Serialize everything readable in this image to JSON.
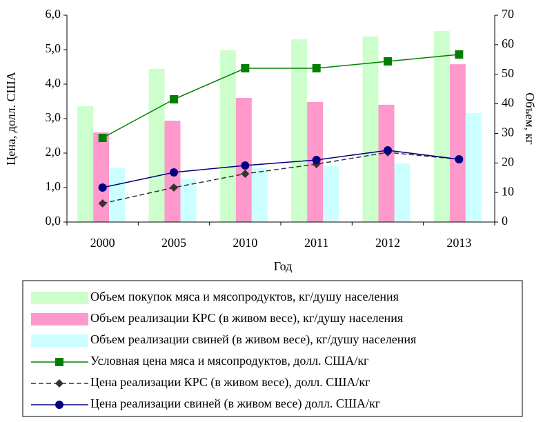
{
  "chart_data": {
    "type": "bar",
    "categories": [
      "2000",
      "2005",
      "2010",
      "2011",
      "2012",
      "2013"
    ],
    "xlabel": "Год",
    "ylabel": "Цена, долл. США",
    "y2label": "Объем, кг",
    "ylim": [
      0,
      6
    ],
    "yticks": [
      {
        "value": 0,
        "label": "0,0"
      },
      {
        "value": 1,
        "label": "1,0"
      },
      {
        "value": 2,
        "label": "2,0"
      },
      {
        "value": 3,
        "label": "3,0"
      },
      {
        "value": 4,
        "label": "4,0"
      },
      {
        "value": 5,
        "label": "5,0"
      },
      {
        "value": 6,
        "label": "6,0"
      }
    ],
    "y2lim": [
      0,
      70
    ],
    "y2ticks": [
      0,
      10,
      20,
      30,
      40,
      50,
      60,
      70
    ],
    "legend": "bottom",
    "series": [
      {
        "name": "Объем покупок мяса и мясопродуктов, кг/душу населения",
        "type": "bar",
        "axis": "y2",
        "color": "#ccffcc",
        "values": [
          39.2,
          51.8,
          58.1,
          61.8,
          62.8,
          64.6
        ]
      },
      {
        "name": "Объем реализации КРС (в живом весе), кг/душу населения",
        "type": "bar",
        "axis": "y2",
        "color": "#ff99cc",
        "values": [
          30.3,
          34.3,
          42.0,
          40.6,
          39.7,
          53.4
        ]
      },
      {
        "name": "Объем реализации свиней (в живом весе), кг/душу населения",
        "type": "bar",
        "axis": "y2",
        "color": "#ccffff",
        "values": [
          18.4,
          14.7,
          18.4,
          18.9,
          19.8,
          36.9
        ]
      },
      {
        "name": "Условная цена мяса и мясопродуктов, долл. США/кг",
        "type": "line",
        "axis": "y",
        "color": "#008000",
        "marker": "square",
        "dashed": false,
        "values": [
          2.44,
          3.56,
          4.46,
          4.46,
          4.66,
          4.86
        ]
      },
      {
        "name": "Цена реализации КРС (в живом весе), долл. США/кг",
        "type": "line",
        "axis": "y",
        "color": "#333333",
        "marker": "diamond",
        "dashed": true,
        "values": [
          0.54,
          1.0,
          1.4,
          1.68,
          2.02,
          1.82
        ]
      },
      {
        "name": "Цена реализации свиней (в живом весе) долл. США/кг",
        "type": "line",
        "axis": "y",
        "color": "#000080",
        "marker": "circle",
        "dashed": false,
        "values": [
          1.0,
          1.44,
          1.64,
          1.8,
          2.08,
          1.82
        ]
      }
    ]
  }
}
